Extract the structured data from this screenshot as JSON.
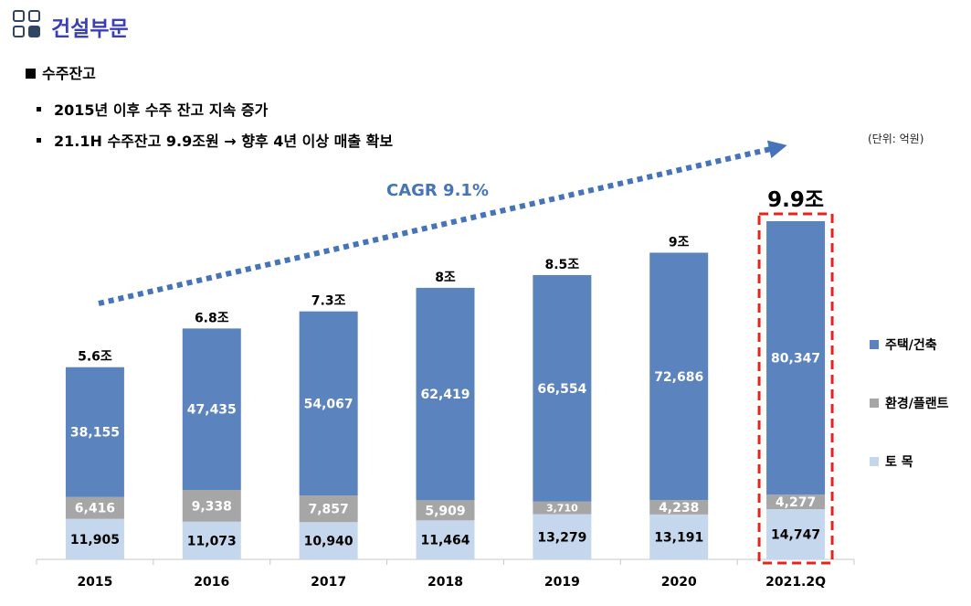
{
  "header": {
    "title": "건설부문",
    "section_label": "수주잔고",
    "bullets": [
      "2015년 이후 수주 잔고 지속 증가",
      "21.1H 수주잔고 9.9조원 → 향후 4년 이상 매출 확보"
    ],
    "unit_label": "(단위: 억원)"
  },
  "colors": {
    "title": "#3a3fb8",
    "housing": "#5b83bd",
    "environment": "#a6a6a6",
    "civil": "#c5d7ec",
    "arrow": "#4674b8",
    "highlight": "#e8231b"
  },
  "chart_data": {
    "type": "bar",
    "stacked": true,
    "categories": [
      "2015",
      "2016",
      "2017",
      "2018",
      "2019",
      "2020",
      "2021.2Q"
    ],
    "series": [
      {
        "name": "토 목",
        "values": [
          11905,
          11073,
          10940,
          11464,
          13279,
          13191,
          14747
        ],
        "labels": [
          "11,905",
          "11,073",
          "10,940",
          "11,464",
          "13,279",
          "13,191",
          "14,747"
        ]
      },
      {
        "name": "환경/플랜트",
        "values": [
          6416,
          9338,
          7857,
          5909,
          3710,
          4238,
          4277
        ],
        "labels": [
          "6,416",
          "9,338",
          "7,857",
          "5,909",
          "3,710",
          "4,238",
          "4,277"
        ]
      },
      {
        "name": "주택/건축",
        "values": [
          38155,
          47435,
          54067,
          62419,
          66554,
          72686,
          80347
        ],
        "labels": [
          "38,155",
          "47,435",
          "54,067",
          "62,419",
          "66,554",
          "72,686",
          "80,347"
        ]
      }
    ],
    "totals": [
      "5.6조",
      "6.8조",
      "7.3조",
      "8조",
      "8.5조",
      "9조",
      "9.9조"
    ],
    "annotation": "CAGR 9.1%",
    "highlighted_category": "2021.2Q",
    "legend_order": [
      "주택/건축",
      "환경/플랜트",
      "토 목"
    ],
    "legend_position": "right",
    "grid": false
  }
}
